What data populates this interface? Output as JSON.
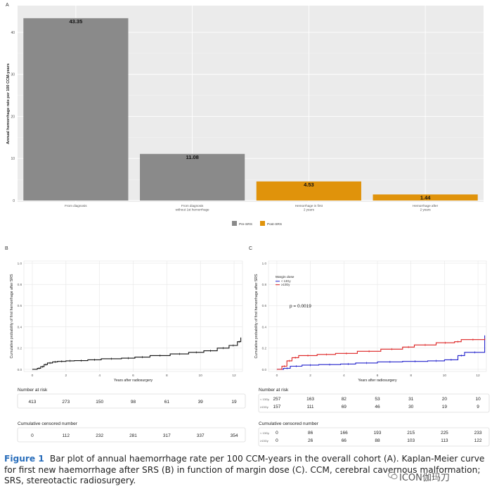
{
  "chart_data": [
    {
      "panel_label": "A",
      "type": "bar",
      "ylabel": "Annual hemorrhage rate per 100 CCM-years",
      "ylim": [
        0,
        45
      ],
      "y_ticks": [
        0,
        10,
        20,
        30,
        40
      ],
      "categories": [
        [
          "From diagnosis"
        ],
        [
          "From diagnosis",
          "without 1st hemorrhage"
        ],
        [
          "Hemorrhage in first",
          "2 years"
        ],
        [
          "Hemorrhage after",
          "2 years"
        ]
      ],
      "values": [
        43.35,
        11.08,
        4.53,
        1.44
      ],
      "value_labels": [
        "43.35",
        "11.08",
        "4.53",
        "1.44"
      ],
      "bar_groups": [
        "Pre-SRS",
        "Pre-SRS",
        "Post-SRS",
        "Post-SRS"
      ],
      "legend": [
        {
          "name": "Pre-SRS",
          "color": "#8a8a8a"
        },
        {
          "name": "Post-SRS",
          "color": "#e0930b"
        }
      ],
      "legend_position": "bottom",
      "grid": true
    },
    {
      "panel_label": "B",
      "type": "line",
      "xlabel": "Years after radiosurgery",
      "ylabel": "Cumulative probability of first hemorrhage after SRS",
      "xlim": [
        -0.5,
        12.5
      ],
      "ylim": [
        -0.02,
        1.02
      ],
      "x_ticks": [
        0,
        2,
        4,
        6,
        8,
        10,
        12
      ],
      "y_ticks": [
        "0.0",
        "0.2",
        "0.4",
        "0.6",
        "0.8",
        "1.0"
      ],
      "grid": true,
      "series": [
        {
          "color": "#111111",
          "x": [
            0,
            0.3,
            0.5,
            0.7,
            0.9,
            1.2,
            1.5,
            2.0,
            2.5,
            3.3,
            4.1,
            5.3,
            6.1,
            7.0,
            8.2,
            9.3,
            10.2,
            11.0,
            11.7,
            12.2,
            12.4
          ],
          "y": [
            0,
            0.01,
            0.025,
            0.045,
            0.06,
            0.07,
            0.075,
            0.08,
            0.082,
            0.09,
            0.1,
            0.105,
            0.115,
            0.13,
            0.145,
            0.16,
            0.175,
            0.2,
            0.225,
            0.26,
            0.3
          ]
        }
      ],
      "risk_table": {
        "title": "Number at risk",
        "rows": [
          {
            "label": "",
            "values": [
              "413",
              "273",
              "150",
              "98",
              "61",
              "39",
              "19"
            ]
          }
        ]
      },
      "censored_table": {
        "title": "Cumulative censored number",
        "rows": [
          {
            "label": "",
            "values": [
              "0",
              "112",
              "232",
              "281",
              "317",
              "337",
              "354"
            ]
          }
        ]
      }
    },
    {
      "panel_label": "C",
      "type": "line",
      "xlabel": "Years after radiosurgery",
      "ylabel": "Cumulative probability of first hemorrhage after SRS",
      "xlim": [
        -0.5,
        12.5
      ],
      "ylim": [
        -0.02,
        1.02
      ],
      "x_ticks": [
        0,
        2,
        4,
        6,
        8,
        10,
        12
      ],
      "y_ticks": [
        "0.0",
        "0.2",
        "0.4",
        "0.6",
        "0.8",
        "1.0"
      ],
      "grid": true,
      "legend_title": "Margin dose",
      "legend_position": "top-left",
      "annotation": "p = 0.0019",
      "series": [
        {
          "name": "< 13Gy",
          "color": "#2222cc",
          "x": [
            0,
            0.4,
            0.8,
            1.5,
            2.5,
            3.8,
            4.7,
            6.0,
            7.5,
            9.0,
            10.0,
            10.8,
            11.2,
            12.4
          ],
          "y": [
            0,
            0.01,
            0.03,
            0.04,
            0.045,
            0.05,
            0.06,
            0.07,
            0.075,
            0.08,
            0.09,
            0.13,
            0.16,
            0.32
          ]
        },
        {
          "name": "≥13Gy",
          "color": "#dd2222",
          "x": [
            0,
            0.3,
            0.6,
            0.9,
            1.3,
            2.4,
            3.5,
            4.8,
            6.2,
            7.5,
            8.2,
            9.5,
            10.6,
            11.0,
            12.4
          ],
          "y": [
            0,
            0.03,
            0.08,
            0.11,
            0.13,
            0.14,
            0.15,
            0.17,
            0.19,
            0.21,
            0.23,
            0.25,
            0.26,
            0.28,
            0.29
          ]
        }
      ],
      "risk_table": {
        "title": "Number at risk",
        "rows": [
          {
            "label": "< 13Gy",
            "values": [
              "257",
              "163",
              "82",
              "53",
              "31",
              "20",
              "10"
            ]
          },
          {
            "label": "≥13Gy",
            "values": [
              "157",
              "111",
              "69",
              "46",
              "30",
              "19",
              "9"
            ]
          }
        ]
      },
      "censored_table": {
        "title": "Cumulative censored number",
        "rows": [
          {
            "label": "< 13Gy",
            "values": [
              "0",
              "86",
              "166",
              "193",
              "215",
              "225",
              "233"
            ]
          },
          {
            "label": "≥13Gy",
            "values": [
              "0",
              "26",
              "66",
              "88",
              "103",
              "113",
              "122"
            ]
          }
        ]
      }
    }
  ],
  "caption": {
    "figure_label": "Figure 1",
    "text": "Bar plot of annual haemorrhage rate per 100 CCM-years in the overall cohort (A). Kaplan-Meier curve for first new haemorrhage after SRS (B) in function of margin dose (C). CCM, cerebral cavernous malformation; SRS, stereotactic radiosurgery."
  },
  "watermark": "ICON伽玛刀"
}
